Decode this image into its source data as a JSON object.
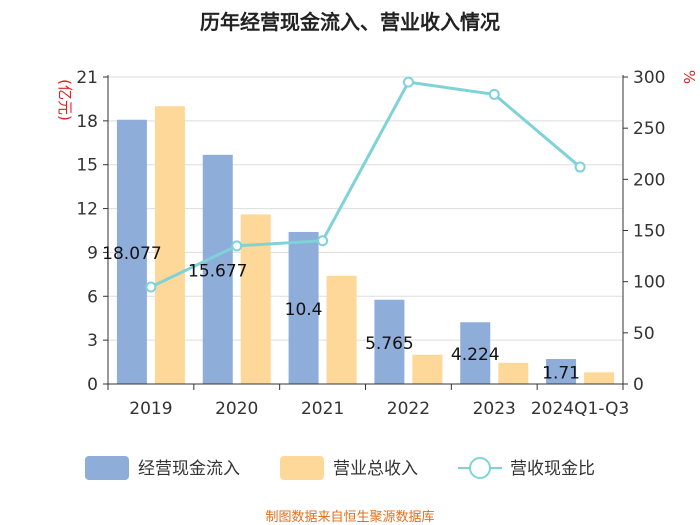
{
  "title": "历年经营现金流入、营业收入情况",
  "source": "制图数据来自恒生聚源数据库",
  "colors": {
    "cash_inflow": "#8eadd9",
    "revenue": "#fed899",
    "ratio": "#7fd3d8",
    "left_unit": "#e02020",
    "right_unit": "#e02020"
  },
  "chart_data": {
    "type": "bar",
    "title": "历年经营现金流入、营业收入情况",
    "categories": [
      "2019",
      "2020",
      "2021",
      "2022",
      "2023",
      "2024Q1-Q3"
    ],
    "y_left": {
      "label": "(亿元)",
      "ylim": [
        0,
        21
      ],
      "ticks": [
        "0",
        "3",
        "6",
        "9",
        "12",
        "15",
        "18",
        "21"
      ]
    },
    "y_right": {
      "label": "%",
      "ylim": [
        0,
        300
      ],
      "ticks": [
        "0",
        "50",
        "100",
        "150",
        "200",
        "250",
        "300"
      ]
    },
    "grid": true,
    "legend_position": "bottom",
    "series": [
      {
        "name": "经营现金流入",
        "type": "bar",
        "axis": "left",
        "values": [
          18.077,
          15.677,
          10.4,
          5.765,
          4.224,
          1.71
        ],
        "labels": [
          "18.077",
          "15.677",
          "10.4",
          "5.765",
          "4.224",
          "1.71"
        ]
      },
      {
        "name": "营业总收入",
        "type": "bar",
        "axis": "left",
        "values": [
          19.0,
          11.6,
          7.4,
          2.0,
          1.45,
          0.8
        ]
      },
      {
        "name": "营收现金比",
        "type": "line",
        "axis": "right",
        "values": [
          94.8,
          135,
          140,
          295,
          283,
          212
        ]
      }
    ]
  }
}
